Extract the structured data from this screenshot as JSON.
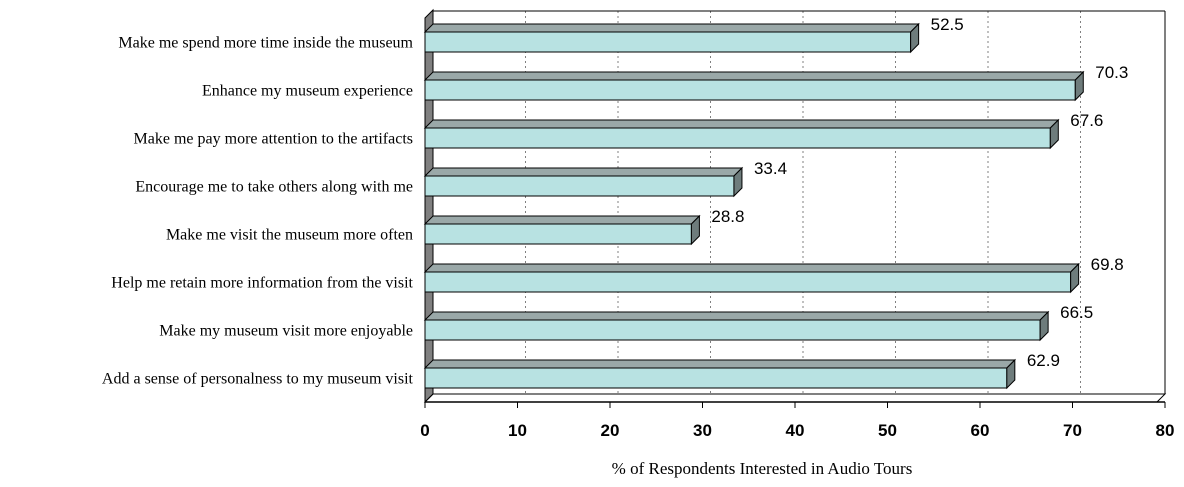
{
  "chart_data": {
    "type": "bar",
    "orientation": "horizontal",
    "categories": [
      "Make me spend more time inside the museum",
      "Enhance my museum experience",
      "Make me pay more attention to the artifacts",
      "Encourage me to take others along with me",
      "Make me visit the museum more often",
      "Help me retain more information from the visit",
      "Make my museum visit more enjoyable",
      "Add a sense of personalness to my museum visit"
    ],
    "values": [
      52.5,
      70.3,
      67.6,
      33.4,
      28.8,
      69.8,
      66.5,
      62.9
    ],
    "value_labels": [
      "52.5",
      "70.3",
      "67.6",
      "33.4",
      "28.8",
      "69.8",
      "66.5",
      "62.9"
    ],
    "xlabel": "% of Respondents Interested in Audio Tours",
    "ylabel": "",
    "xlim": [
      0,
      80
    ],
    "xticks": [
      "0",
      "10",
      "20",
      "30",
      "40",
      "50",
      "60",
      "70",
      "80"
    ],
    "grid": "vertical dotted",
    "legend": "none",
    "colors": {
      "bar_face": "#b8e2e2",
      "bar_side": "#6e7c7c",
      "bar_top": "#9aa8a8",
      "bar_outline": "#000000",
      "wall": "#808080",
      "grid": "#808080"
    }
  }
}
